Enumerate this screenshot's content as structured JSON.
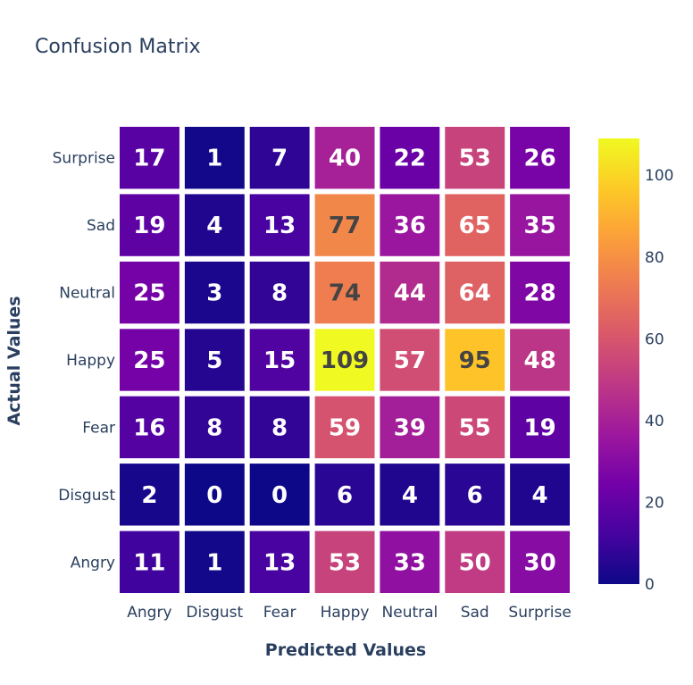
{
  "chart_data": {
    "type": "heatmap",
    "title": "Confusion Matrix",
    "xlabel": "Predicted Values",
    "ylabel": "Actual Values",
    "x_categories": [
      "Angry",
      "Disgust",
      "Fear",
      "Happy",
      "Neutral",
      "Sad",
      "Surprise"
    ],
    "y_categories": [
      "Angry",
      "Disgust",
      "Fear",
      "Happy",
      "Neutral",
      "Sad",
      "Surprise"
    ],
    "values": [
      [
        11,
        1,
        13,
        53,
        33,
        50,
        30
      ],
      [
        2,
        0,
        0,
        6,
        4,
        6,
        4
      ],
      [
        16,
        8,
        8,
        59,
        39,
        55,
        19
      ],
      [
        25,
        5,
        15,
        109,
        57,
        95,
        48
      ],
      [
        25,
        3,
        8,
        74,
        44,
        64,
        28
      ],
      [
        19,
        4,
        13,
        77,
        36,
        65,
        35
      ],
      [
        17,
        1,
        7,
        40,
        22,
        53,
        26
      ]
    ],
    "colorscale": "plasma",
    "zlim": [
      0,
      109
    ],
    "colorbar_ticks": [
      0,
      20,
      40,
      60,
      80,
      100
    ],
    "legend": "right"
  }
}
